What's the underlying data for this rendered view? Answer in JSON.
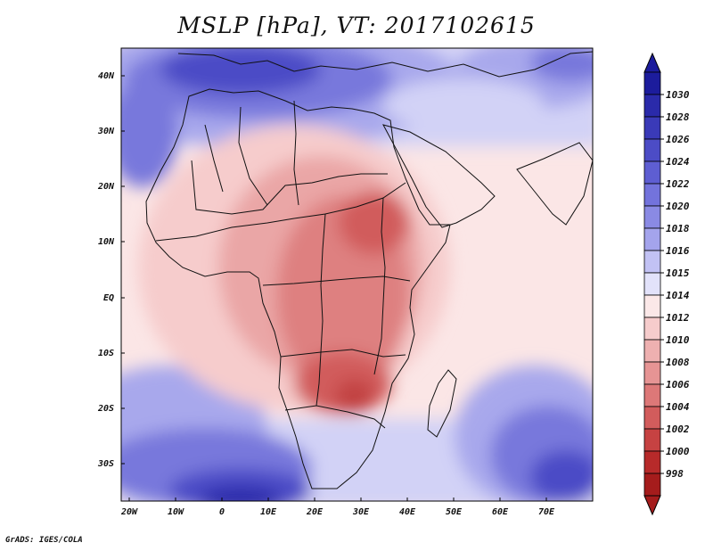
{
  "map": {
    "title": "MSLP [hPa], VT: 2017102615",
    "variable": "MSLP",
    "units": "hPa",
    "valid_time": "2017102615",
    "credit": "GrADS: IGES/COLA",
    "lat_labels": [
      "40N",
      "30N",
      "20N",
      "10N",
      "EQ",
      "10S",
      "20S",
      "30S"
    ],
    "lon_labels": [
      "20W",
      "10W",
      "0",
      "10E",
      "20E",
      "30E",
      "40E",
      "50E",
      "60E",
      "70E"
    ],
    "colorbar": {
      "labels": [
        "1030",
        "1028",
        "1026",
        "1024",
        "1022",
        "1020",
        "1018",
        "1016",
        "1015",
        "1014",
        "1012",
        "1010",
        "1008",
        "1006",
        "1004",
        "1002",
        "1000",
        "998"
      ],
      "colors": [
        "#1c1c9c",
        "#2a2aaa",
        "#3a3ab8",
        "#4c4cc6",
        "#5e5ed2",
        "#7373dc",
        "#8a8ae4",
        "#a4a4ec",
        "#c2c2f4",
        "#e2e2fa",
        "#fbe8e8",
        "#f6cccc",
        "#eeb0b0",
        "#e69494",
        "#dd7878",
        "#d25c5c",
        "#c64242",
        "#b72a2a",
        "#a51c1c"
      ],
      "top_arrow_color": "#1c1c9c",
      "bottom_arrow_color": "#a51c1c"
    },
    "field_colors": {
      "ocean_neutral": "#fbe6e6",
      "very_high": "#2a2aaa",
      "high": "#4c4cc6",
      "mid_high": "#7878dc",
      "light_high": "#a8a8ec",
      "pale_high": "#d2d2f6",
      "neutral": "#fdf3f3",
      "pale_low": "#f6cccc",
      "low": "#eaa6a6",
      "lower": "#de8080",
      "lowest": "#d15c5c",
      "deep": "#c24242"
    }
  }
}
